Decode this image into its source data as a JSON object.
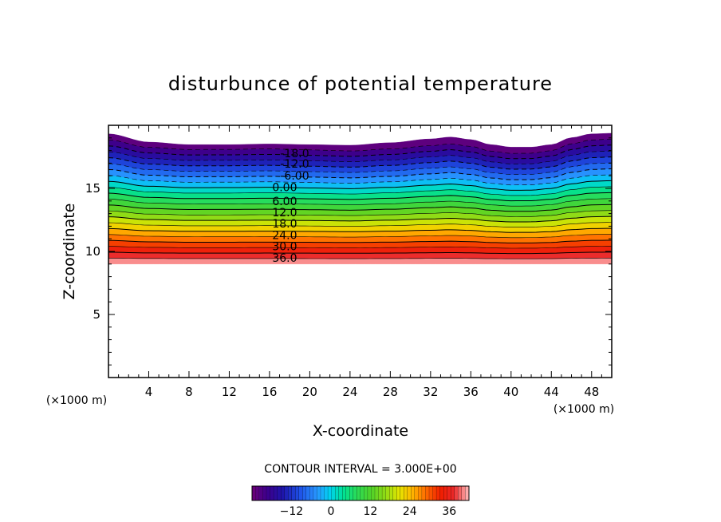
{
  "chart_data": {
    "type": "contour",
    "title": "disturbunce of potential temperature",
    "xlabel": "X-coordinate",
    "ylabel": "Z-coordinate",
    "x_unit": "(×1000 m)",
    "y_unit": "(×1000 m)",
    "xlim": [
      0,
      50
    ],
    "ylim": [
      0,
      20
    ],
    "x_ticks": [
      4,
      8,
      12,
      16,
      20,
      24,
      28,
      32,
      36,
      40,
      44,
      48
    ],
    "y_ticks": [
      5,
      10,
      15
    ],
    "contour_interval_label": "CONTOUR INTERVAL = 3.000E+00",
    "contour_interval": 3,
    "value_range": [
      -24,
      42
    ],
    "filled_region_z": [
      9,
      19
    ],
    "top_profile": [
      {
        "x": 0,
        "z": 19.3
      },
      {
        "x": 4,
        "z": 18.65
      },
      {
        "x": 8,
        "z": 18.45
      },
      {
        "x": 12,
        "z": 18.45
      },
      {
        "x": 16,
        "z": 18.5
      },
      {
        "x": 20,
        "z": 18.45
      },
      {
        "x": 24,
        "z": 18.4
      },
      {
        "x": 28,
        "z": 18.6
      },
      {
        "x": 32,
        "z": 18.9
      },
      {
        "x": 34,
        "z": 19.05
      },
      {
        "x": 36,
        "z": 18.85
      },
      {
        "x": 38,
        "z": 18.45
      },
      {
        "x": 40,
        "z": 18.25
      },
      {
        "x": 42,
        "z": 18.25
      },
      {
        "x": 44,
        "z": 18.45
      },
      {
        "x": 46,
        "z": 19.0
      },
      {
        "x": 48,
        "z": 19.3
      },
      {
        "x": 50,
        "z": 19.35
      }
    ],
    "contour_labels": [
      {
        "text": "-18.0",
        "value": -18,
        "x": 18.5,
        "z": 17.8
      },
      {
        "text": "-12.0",
        "value": -12,
        "x": 18.5,
        "z": 16.95
      },
      {
        "text": "-6.00",
        "value": -6,
        "x": 18.5,
        "z": 16.0
      },
      {
        "text": "0.00",
        "value": 0,
        "x": 17.5,
        "z": 15.1
      },
      {
        "text": "6.00",
        "value": 6,
        "x": 17.5,
        "z": 14.0
      },
      {
        "text": "12.0",
        "value": 12,
        "x": 17.5,
        "z": 13.1
      },
      {
        "text": "18.0",
        "value": 18,
        "x": 17.5,
        "z": 12.2
      },
      {
        "text": "24.0",
        "value": 24,
        "x": 17.5,
        "z": 11.3
      },
      {
        "text": "30.0",
        "value": 30,
        "x": 17.5,
        "z": 10.4
      },
      {
        "text": "36.0",
        "value": 36,
        "x": 17.5,
        "z": 9.5
      }
    ],
    "colorbar": {
      "ticks": [
        -12,
        0,
        12,
        24,
        36
      ],
      "tick_labels": [
        "−12",
        "0",
        "12",
        "24",
        "36"
      ],
      "range": [
        -24,
        42
      ]
    },
    "grid": false,
    "legend": "bottom"
  }
}
